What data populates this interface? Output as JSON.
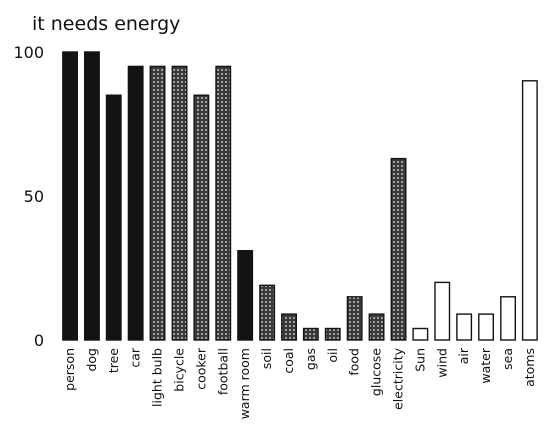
{
  "chart_data": {
    "type": "bar",
    "title": "it needs energy",
    "xlabel": "",
    "ylabel": "",
    "ylim": [
      0,
      100
    ],
    "yticks": [
      0,
      50,
      100
    ],
    "grid": false,
    "legend": "none",
    "categories": [
      "person",
      "dog",
      "tree",
      "car",
      "light bulb",
      "bicycle",
      "cooker",
      "football",
      "warm room",
      "soil",
      "coal",
      "gas",
      "oil",
      "food",
      "glucose",
      "electricity",
      "Sun",
      "wind",
      "air",
      "water",
      "sea",
      "atoms"
    ],
    "values": [
      100,
      100,
      85,
      95,
      95,
      95,
      85,
      95,
      31,
      19,
      9,
      4,
      4,
      15,
      9,
      63,
      4,
      20,
      9,
      9,
      15,
      90
    ],
    "fills": [
      "solid",
      "solid",
      "solid",
      "solid",
      "dotted",
      "dotted",
      "dotted",
      "dotted",
      "solid",
      "dotted",
      "dotted",
      "dotted",
      "dotted",
      "dotted",
      "dotted",
      "dotted",
      "open",
      "open",
      "open",
      "open",
      "open",
      "open"
    ],
    "colors": {
      "solid": "#141414",
      "dotted": "#3a3a3a",
      "open": "#ffffff",
      "outline": "#141414"
    }
  }
}
